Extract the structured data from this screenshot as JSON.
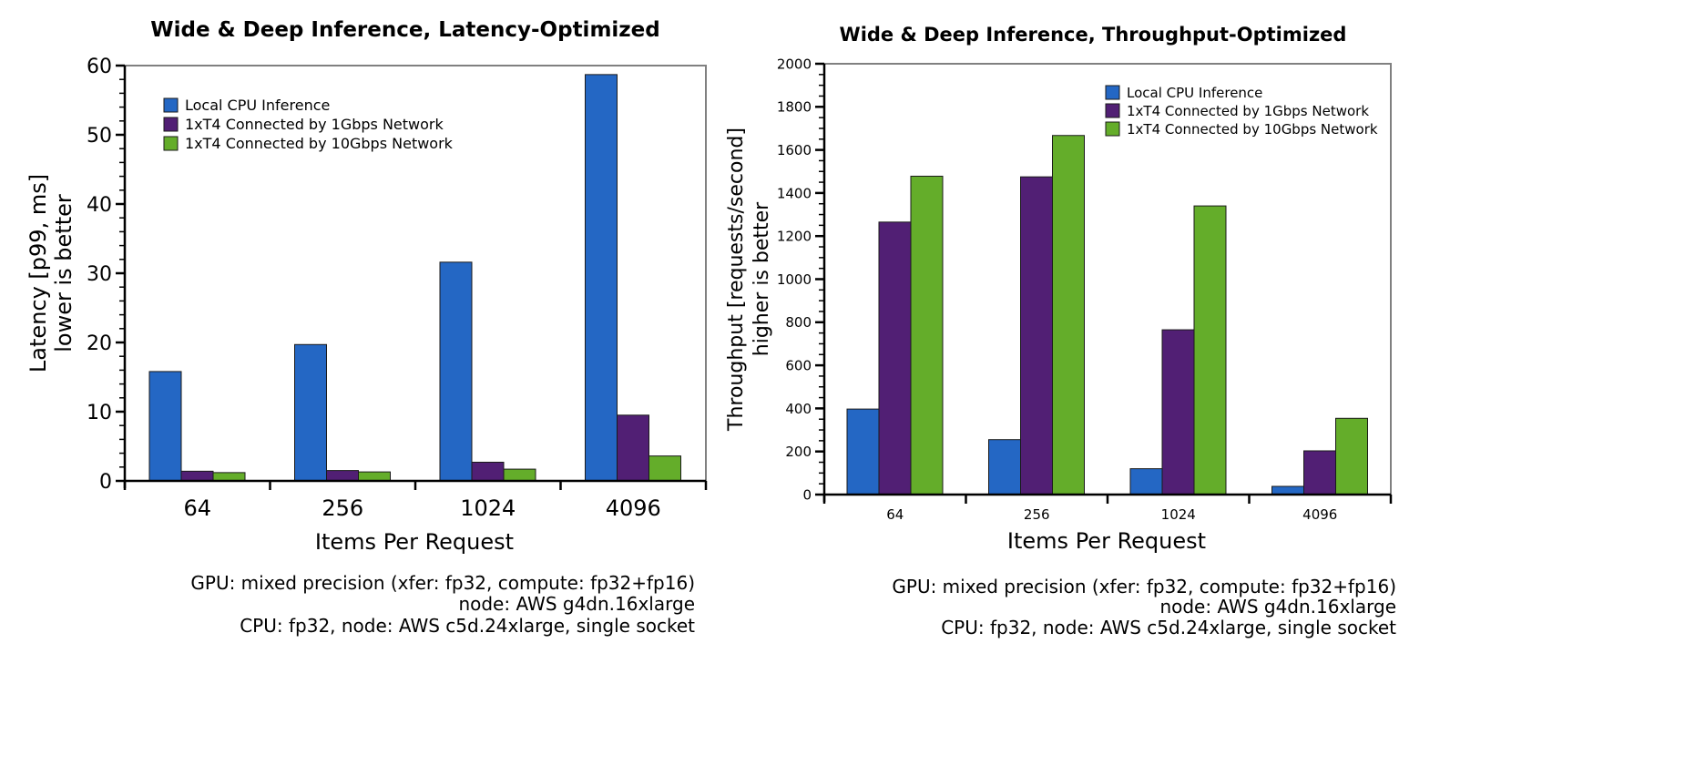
{
  "colors": {
    "cpu": "#2467c4",
    "gbps1": "#511f74",
    "gbps10": "#64ad2a"
  },
  "chart_data": [
    {
      "type": "bar",
      "title": "Wide & Deep Inference, Latency-Optimized",
      "xlabel": "Items Per Request",
      "ylabel": [
        "Latency [p99, ms]",
        "lower is better"
      ],
      "categories": [
        "64",
        "256",
        "1024",
        "4096"
      ],
      "ylim": [
        0,
        60
      ],
      "yticks": [
        0,
        10,
        20,
        30,
        40,
        50,
        60
      ],
      "ytick_labels": [
        "0",
        "10",
        "20",
        "30",
        "40",
        "50",
        "60"
      ],
      "legend_position": "top-left",
      "series": [
        {
          "name": "Local CPU Inference",
          "values": [
            15.8,
            19.7,
            31.6,
            58.7
          ]
        },
        {
          "name": "1xT4 Connected by 1Gbps Network",
          "values": [
            1.4,
            1.5,
            2.7,
            9.5
          ]
        },
        {
          "name": "1xT4 Connected by 10Gbps Network",
          "values": [
            1.2,
            1.3,
            1.7,
            3.6
          ]
        }
      ],
      "notes": [
        "GPU: mixed precision (xfer: fp32, compute: fp32+fp16)",
        "node: AWS g4dn.16xlarge",
        "CPU: fp32, node: AWS c5d.24xlarge, single socket"
      ]
    },
    {
      "type": "bar",
      "title": "Wide & Deep Inference, Throughput-Optimized",
      "xlabel": "Items Per Request",
      "ylabel": [
        "Throughput [requests/second]",
        "higher is better"
      ],
      "categories": [
        "64",
        "256",
        "1024",
        "4096"
      ],
      "ylim": [
        0,
        2000
      ],
      "yticks": [
        0,
        200,
        400,
        600,
        800,
        1000,
        1200,
        1400,
        1600,
        1800,
        2000
      ],
      "ytick_labels": [
        "0",
        "200",
        "400",
        "600",
        "800",
        "1000",
        "1200",
        "1400",
        "1600",
        "1800",
        "2000"
      ],
      "legend_position": "top-right",
      "series": [
        {
          "name": "Local CPU Inference",
          "values": [
            397,
            255,
            120,
            38
          ]
        },
        {
          "name": "1xT4 Connected by 1Gbps Network",
          "values": [
            1265,
            1475,
            765,
            203
          ]
        },
        {
          "name": "1xT4 Connected by 10Gbps Network",
          "values": [
            1478,
            1667,
            1340,
            354
          ]
        }
      ],
      "notes": [
        "GPU: mixed precision (xfer: fp32, compute: fp32+fp16)",
        "node: AWS g4dn.16xlarge",
        "CPU: fp32, node: AWS c5d.24xlarge, single socket"
      ]
    }
  ]
}
